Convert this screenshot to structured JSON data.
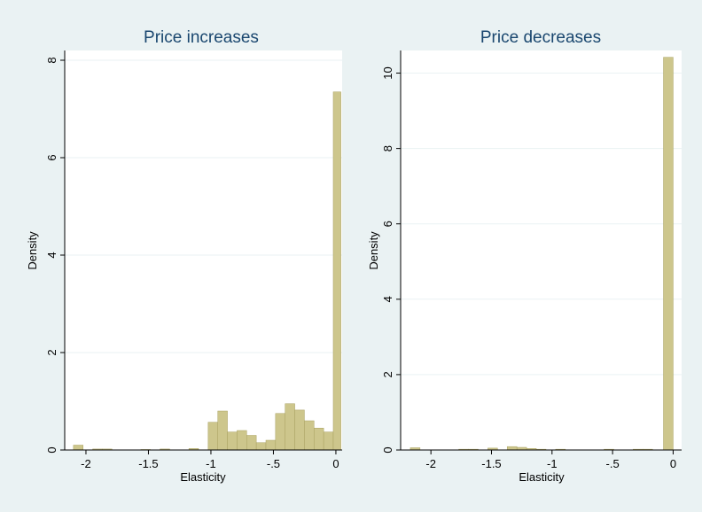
{
  "colors": {
    "figure_background": "#eaf2f3",
    "plot_background": "#ffffff",
    "bar_fill": "#cdc68c",
    "bar_outline": "#a9a261",
    "title_color": "#1a476f"
  },
  "chart_data": [
    {
      "type": "bar",
      "subtype": "histogram",
      "title": "Price increases",
      "xlabel": "Elasticity",
      "ylabel": "Density",
      "xlim": [
        -2.17,
        0.05
      ],
      "ylim": [
        0,
        8.2
      ],
      "xticks": [
        -2,
        -1.5,
        -1,
        -0.5,
        0
      ],
      "xtick_labels": [
        "-2",
        "-1.5",
        "-1",
        "-.5",
        "0"
      ],
      "yticks": [
        0,
        2,
        4,
        6,
        8
      ],
      "ytick_labels": [
        "0",
        "2",
        "4",
        "6",
        "8"
      ],
      "grid": true,
      "bin_width": 0.077,
      "bins": [
        {
          "x0": -2.1,
          "x1": -2.023,
          "value": 0.1
        },
        {
          "x0": -1.946,
          "x1": -1.869,
          "value": 0.02
        },
        {
          "x0": -1.869,
          "x1": -1.792,
          "value": 0.02
        },
        {
          "x0": -1.561,
          "x1": -1.484,
          "value": 0.01
        },
        {
          "x0": -1.407,
          "x1": -1.33,
          "value": 0.02
        },
        {
          "x0": -1.176,
          "x1": -1.099,
          "value": 0.03
        },
        {
          "x0": -1.022,
          "x1": -0.945,
          "value": 0.57
        },
        {
          "x0": -0.945,
          "x1": -0.868,
          "value": 0.8
        },
        {
          "x0": -0.868,
          "x1": -0.791,
          "value": 0.37
        },
        {
          "x0": -0.791,
          "x1": -0.714,
          "value": 0.4
        },
        {
          "x0": -0.714,
          "x1": -0.637,
          "value": 0.3
        },
        {
          "x0": -0.637,
          "x1": -0.56,
          "value": 0.15
        },
        {
          "x0": -0.56,
          "x1": -0.483,
          "value": 0.2
        },
        {
          "x0": -0.483,
          "x1": -0.406,
          "value": 0.75
        },
        {
          "x0": -0.406,
          "x1": -0.329,
          "value": 0.95
        },
        {
          "x0": -0.329,
          "x1": -0.252,
          "value": 0.82
        },
        {
          "x0": -0.252,
          "x1": -0.175,
          "value": 0.6
        },
        {
          "x0": -0.175,
          "x1": -0.098,
          "value": 0.45
        },
        {
          "x0": -0.098,
          "x1": -0.021,
          "value": 0.37
        },
        {
          "x0": -0.021,
          "x1": 0.04,
          "value": 7.35
        }
      ]
    },
    {
      "type": "bar",
      "subtype": "histogram",
      "title": "Price decreases",
      "xlabel": "Elasticity",
      "ylabel": "Density",
      "xlim": [
        -2.25,
        0.07
      ],
      "ylim": [
        0,
        10.6
      ],
      "xticks": [
        -2,
        -1.5,
        -1,
        -0.5,
        0
      ],
      "xtick_labels": [
        "-2",
        "-1.5",
        "-1",
        "-.5",
        "0"
      ],
      "yticks": [
        0,
        2,
        4,
        6,
        8,
        10
      ],
      "ytick_labels": [
        "0",
        "2",
        "4",
        "6",
        "8",
        "10"
      ],
      "grid": true,
      "bin_width": 0.08,
      "bins": [
        {
          "x0": -2.17,
          "x1": -2.09,
          "value": 0.06
        },
        {
          "x0": -1.77,
          "x1": -1.69,
          "value": 0.02
        },
        {
          "x0": -1.69,
          "x1": -1.61,
          "value": 0.02
        },
        {
          "x0": -1.53,
          "x1": -1.45,
          "value": 0.05
        },
        {
          "x0": -1.37,
          "x1": -1.29,
          "value": 0.09
        },
        {
          "x0": -1.29,
          "x1": -1.21,
          "value": 0.07
        },
        {
          "x0": -1.21,
          "x1": -1.13,
          "value": 0.04
        },
        {
          "x0": -1.13,
          "x1": -1.05,
          "value": 0.02
        },
        {
          "x0": -0.97,
          "x1": -0.89,
          "value": 0.02
        },
        {
          "x0": -0.57,
          "x1": -0.49,
          "value": 0.02
        },
        {
          "x0": -0.33,
          "x1": -0.25,
          "value": 0.02
        },
        {
          "x0": -0.25,
          "x1": -0.17,
          "value": 0.02
        },
        {
          "x0": -0.08,
          "x1": 0.0,
          "value": 10.42
        }
      ]
    }
  ]
}
